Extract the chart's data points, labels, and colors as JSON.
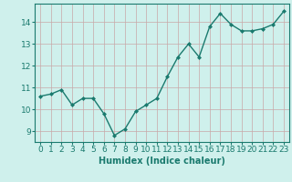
{
  "x": [
    0,
    1,
    2,
    3,
    4,
    5,
    6,
    7,
    8,
    9,
    10,
    11,
    12,
    13,
    14,
    15,
    16,
    17,
    18,
    19,
    20,
    21,
    22,
    23
  ],
  "y": [
    10.6,
    10.7,
    10.9,
    10.2,
    10.5,
    10.5,
    9.8,
    8.8,
    9.1,
    9.9,
    10.2,
    10.5,
    11.5,
    12.4,
    13.0,
    12.4,
    13.8,
    14.4,
    13.9,
    13.6,
    13.6,
    13.7,
    13.9,
    14.5
  ],
  "line_color": "#1a7a6e",
  "marker": "D",
  "marker_size": 2,
  "bg_color": "#cff0ec",
  "grid_color": "#c8a8a8",
  "xlabel": "Humidex (Indice chaleur)",
  "xlabel_fontsize": 7,
  "tick_fontsize": 6.5,
  "ylabel_ticks": [
    9,
    10,
    11,
    12,
    13,
    14
  ],
  "xlim": [
    -0.5,
    23.5
  ],
  "ylim": [
    8.5,
    14.85
  ],
  "line_width": 1.0
}
